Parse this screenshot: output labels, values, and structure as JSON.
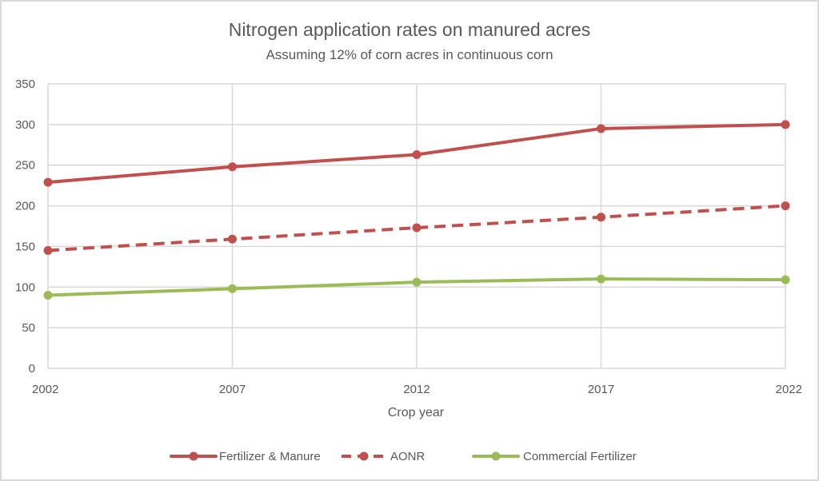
{
  "chart_data": {
    "type": "line",
    "title": "Nitrogen application rates on manured acres",
    "subtitle": "Assuming 12% of corn acres in continuous corn",
    "xlabel": "Crop year",
    "ylabel": "",
    "x": [
      "2002",
      "2007",
      "2012",
      "2017",
      "2022"
    ],
    "ylim": [
      0,
      350
    ],
    "yticks": [
      0,
      50,
      100,
      150,
      200,
      250,
      300,
      350
    ],
    "yticks_labels": [
      "0",
      "50",
      "100",
      "150",
      "200",
      "250",
      "300",
      "350"
    ],
    "grid": true,
    "legend_position": "bottom",
    "series": [
      {
        "name": "Fertilizer & Manure",
        "values": [
          229,
          248,
          263,
          295,
          300
        ],
        "color": "#c0504d",
        "dash": "solid"
      },
      {
        "name": "AONR",
        "values": [
          145,
          159,
          173,
          186,
          200
        ],
        "color": "#c0504d",
        "dash": "dashed"
      },
      {
        "name": "Commercial Fertilizer",
        "values": [
          90,
          98,
          106,
          110,
          109
        ],
        "color": "#9bbb59",
        "dash": "solid"
      }
    ]
  }
}
